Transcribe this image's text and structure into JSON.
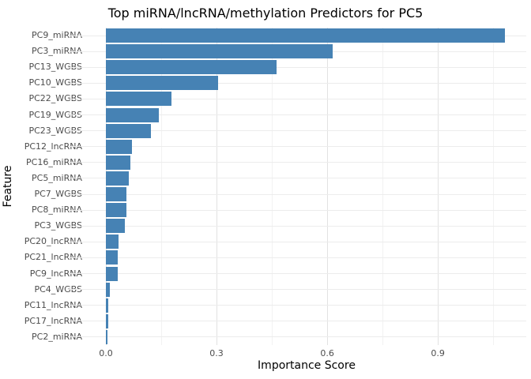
{
  "chart_data": {
    "type": "bar",
    "orientation": "horizontal",
    "title": "Top miRNA/lncRNA/methylation Predictors for PC5",
    "xlabel": "Importance Score",
    "ylabel": "Feature",
    "categories": [
      "PC9_miRNA",
      "PC3_miRNA",
      "PC13_WGBS",
      "PC10_WGBS",
      "PC22_WGBS",
      "PC19_WGBS",
      "PC23_WGBS",
      "PC12_lncRNA",
      "PC16_miRNA",
      "PC5_miRNA",
      "PC7_WGBS",
      "PC8_miRNA",
      "PC3_WGBS",
      "PC20_lncRNA",
      "PC21_lncRNA",
      "PC9_lncRNA",
      "PC4_WGBS",
      "PC11_lncRNA",
      "PC17_lncRNA",
      "PC2_miRNA"
    ],
    "values": [
      1.082,
      0.615,
      0.463,
      0.304,
      0.178,
      0.144,
      0.122,
      0.071,
      0.066,
      0.062,
      0.056,
      0.056,
      0.051,
      0.034,
      0.032,
      0.032,
      0.011,
      0.006,
      0.006,
      0.004
    ],
    "x_ticks": [
      0.0,
      0.3,
      0.6,
      0.9
    ],
    "x_tick_labels": [
      "0.0",
      "0.3",
      "0.6",
      "0.9"
    ],
    "x_minor_ticks": [
      0.15,
      0.45,
      0.75,
      1.05
    ],
    "xlim": [
      -0.054,
      1.14
    ],
    "grid": "on",
    "legend": "none",
    "bar_color": "#4682b4",
    "major_grid_color": "#e2e2e2",
    "minor_grid_color": "#f2f2f2",
    "horizontal_grid_color": "#ececec",
    "tick_label_color": "#4d4d4d",
    "title_color": "#000000",
    "background_color": "#ffffff"
  }
}
